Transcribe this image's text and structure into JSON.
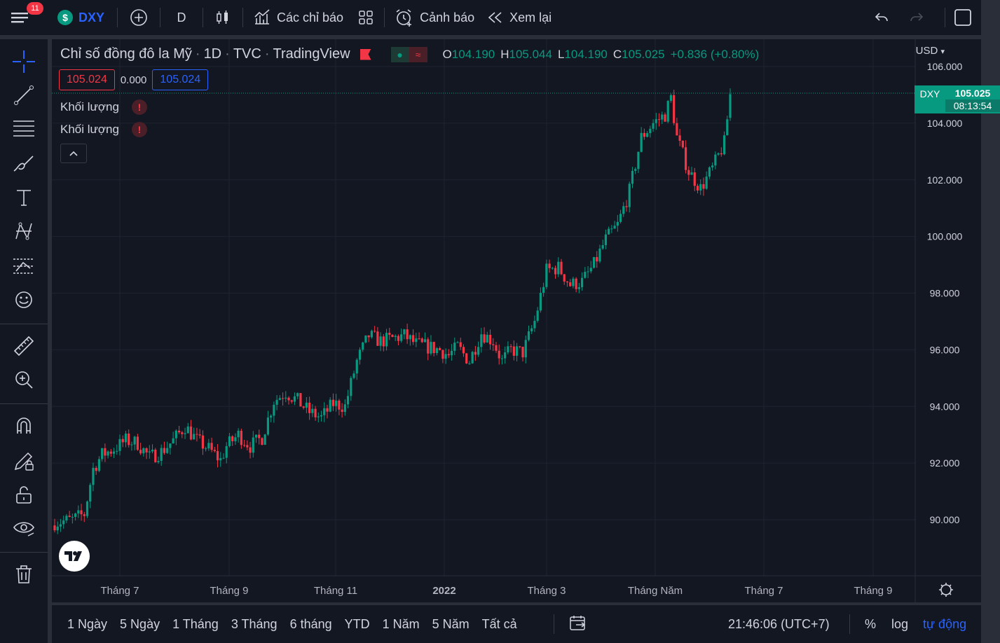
{
  "topbar": {
    "menu_badge": "11",
    "symbol": "DXY",
    "interval": "D",
    "indicators_label": "Các chỉ báo",
    "alerts_label": "Cảnh báo",
    "replay_label": "Xem lại"
  },
  "legend": {
    "title": "Chỉ số đồng đô la Mỹ",
    "interval": "1D",
    "exchange": "TVC",
    "provider": "TradingView",
    "open_key": "O",
    "open": "104.190",
    "high_key": "H",
    "high": "105.044",
    "low_key": "L",
    "low": "104.190",
    "close_key": "C",
    "close": "105.025",
    "change": "+0.836 (+0.80%)"
  },
  "quote": {
    "bid": "105.024",
    "spread": "0.000",
    "ask": "105.024"
  },
  "indicators": [
    {
      "label": "Khối lượng"
    },
    {
      "label": "Khối lượng"
    }
  ],
  "axis": {
    "currency": "USD",
    "last_symbol": "DXY",
    "last_price": "105.025",
    "countdown": "08:13:54"
  },
  "chart_data": {
    "type": "candlestick",
    "y_ticks": [
      "106.000",
      "104.000",
      "102.000",
      "100.000",
      "98.000",
      "96.000",
      "94.000",
      "92.000",
      "90.000"
    ],
    "x_ticks": [
      "Tháng 7",
      "Tháng 9",
      "Tháng 11",
      "2022",
      "Tháng 3",
      "Tháng Năm",
      "Tháng 7",
      "Tháng 9"
    ],
    "ylim": [
      88.5,
      106.5
    ],
    "close_path": [
      [
        0,
        89.9
      ],
      [
        6,
        90.0
      ],
      [
        10,
        90.2
      ],
      [
        13,
        91.8
      ],
      [
        16,
        92.3
      ],
      [
        20,
        92.5
      ],
      [
        24,
        92.8
      ],
      [
        28,
        92.7
      ],
      [
        32,
        92.2
      ],
      [
        36,
        92.4
      ],
      [
        40,
        92.8
      ],
      [
        44,
        93.3
      ],
      [
        48,
        92.8
      ],
      [
        52,
        92.5
      ],
      [
        56,
        92.1
      ],
      [
        58,
        92.6
      ],
      [
        62,
        93.0
      ],
      [
        66,
        92.6
      ],
      [
        70,
        92.9
      ],
      [
        74,
        94.2
      ],
      [
        78,
        94.5
      ],
      [
        82,
        94.2
      ],
      [
        86,
        93.8
      ],
      [
        90,
        93.6
      ],
      [
        94,
        94.1
      ],
      [
        98,
        94.0
      ],
      [
        102,
        95.6
      ],
      [
        106,
        96.5
      ],
      [
        110,
        96.3
      ],
      [
        114,
        96.4
      ],
      [
        118,
        96.5
      ],
      [
        122,
        96.2
      ],
      [
        126,
        96.1
      ],
      [
        130,
        96.0
      ],
      [
        133,
        95.8
      ],
      [
        136,
        96.1
      ],
      [
        140,
        95.6
      ],
      [
        144,
        96.6
      ],
      [
        148,
        96.3
      ],
      [
        151,
        95.6
      ],
      [
        154,
        96.0
      ],
      [
        158,
        95.9
      ],
      [
        162,
        97.0
      ],
      [
        166,
        98.8
      ],
      [
        170,
        98.9
      ],
      [
        174,
        98.3
      ],
      [
        178,
        98.4
      ],
      [
        182,
        99.0
      ],
      [
        186,
        99.9
      ],
      [
        190,
        100.4
      ],
      [
        194,
        101.6
      ],
      [
        198,
        103.5
      ],
      [
        202,
        104.0
      ],
      [
        206,
        104.3
      ],
      [
        208,
        104.9
      ],
      [
        210,
        103.5
      ],
      [
        214,
        102.3
      ],
      [
        218,
        101.7
      ],
      [
        222,
        102.4
      ],
      [
        226,
        103.3
      ],
      [
        228,
        105.0
      ]
    ]
  },
  "bottombar": {
    "ranges": [
      "1 Ngày",
      "5 Ngày",
      "1 Tháng",
      "3 Tháng",
      "6 tháng",
      "YTD",
      "1 Năm",
      "5 Năm",
      "Tất cả"
    ],
    "clock": "21:46:06 (UTC+7)",
    "percent": "%",
    "log": "log",
    "auto": "tự động"
  },
  "colors": {
    "up": "#089981",
    "down": "#f23645",
    "bg": "#131722",
    "accent": "#2962ff"
  }
}
